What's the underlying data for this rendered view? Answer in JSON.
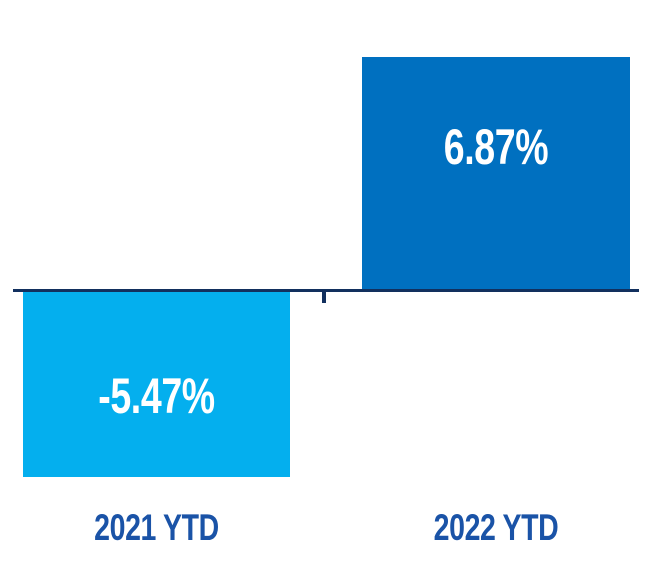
{
  "chart_data": {
    "type": "bar",
    "categories": [
      "2021 YTD",
      "2022 YTD"
    ],
    "values": [
      -5.47,
      6.87
    ],
    "data_labels": [
      "-5.47%",
      "6.87%"
    ],
    "series": [
      {
        "name": "2021 YTD",
        "value": -5.47,
        "label": "-5.47%",
        "color": "#04AFEE"
      },
      {
        "name": "2022 YTD",
        "value": 6.87,
        "label": "6.87%",
        "color": "#0070C0"
      }
    ],
    "title": "",
    "xlabel": "",
    "ylabel": "",
    "baseline": 0,
    "grid": false,
    "legend": false,
    "value_axis_visible": false,
    "value_format": "percent",
    "colors": {
      "bar_2021": "#04AFEE",
      "bar_2022": "#0070C0",
      "axis_line": "#12305E",
      "category_label": "#1A53A7",
      "data_label": "#FFFFFF",
      "background": "#FFFFFF"
    }
  }
}
